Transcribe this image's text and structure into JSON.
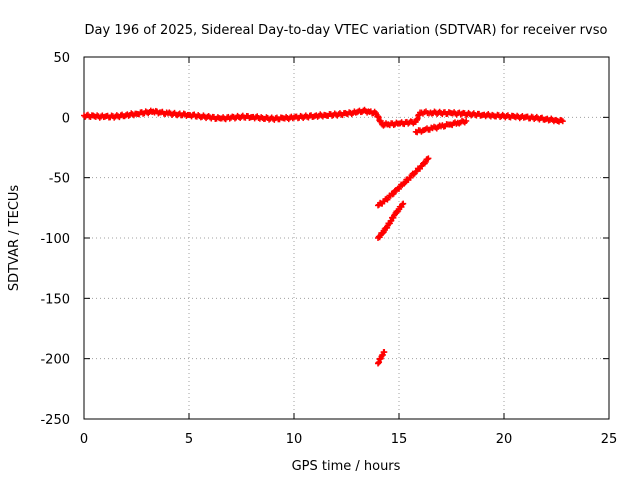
{
  "chart_data": {
    "type": "scatter",
    "title": "Day 196 of 2025, Sidereal Day-to-day VTEC variation (SDTVAR) for receiver rvso",
    "xlabel": "GPS time / hours",
    "ylabel": "SDTVAR / TECUs",
    "xlim": [
      0,
      25
    ],
    "ylim": [
      -250,
      50
    ],
    "xticks": [
      0,
      5,
      10,
      15,
      20,
      25
    ],
    "yticks": [
      -250,
      -200,
      -150,
      -100,
      -50,
      0,
      50
    ],
    "grid": true,
    "marker": "plus",
    "color": "#ff0000",
    "series": [
      {
        "values": [
          [
            0.0,
            1.5
          ],
          [
            0.5,
            0.8
          ],
          [
            1.0,
            0.5
          ],
          [
            1.5,
            0.7
          ],
          [
            2.0,
            1.8
          ],
          [
            2.5,
            3.0
          ],
          [
            3.0,
            4.2
          ],
          [
            3.3,
            4.8
          ],
          [
            3.6,
            4.0
          ],
          [
            4.0,
            3.2
          ],
          [
            4.5,
            2.5
          ],
          [
            5.0,
            2.0
          ],
          [
            5.5,
            1.0
          ],
          [
            6.0,
            0.0
          ],
          [
            6.5,
            -1.0
          ],
          [
            7.0,
            -0.3
          ],
          [
            7.5,
            0.5
          ],
          [
            8.0,
            0.3
          ],
          [
            8.5,
            -0.5
          ],
          [
            9.0,
            -1.2
          ],
          [
            9.5,
            -0.8
          ],
          [
            10.0,
            -0.2
          ],
          [
            10.5,
            0.5
          ],
          [
            11.0,
            1.2
          ],
          [
            11.5,
            1.8
          ],
          [
            12.0,
            2.3
          ],
          [
            12.5,
            3.0
          ],
          [
            13.0,
            4.2
          ],
          [
            13.3,
            5.5
          ],
          [
            13.6,
            4.5
          ],
          [
            13.9,
            3.5
          ],
          [
            14.2,
            -6.0
          ],
          [
            14.5,
            -5.8
          ],
          [
            15.0,
            -5.2
          ],
          [
            15.5,
            -4.3
          ],
          [
            15.8,
            -3.8
          ],
          [
            16.0,
            4.0
          ],
          [
            16.5,
            4.0
          ],
          [
            17.0,
            3.6
          ],
          [
            17.5,
            3.4
          ],
          [
            18.0,
            3.0
          ],
          [
            18.5,
            2.5
          ],
          [
            19.0,
            2.0
          ],
          [
            19.5,
            1.5
          ],
          [
            20.0,
            1.0
          ],
          [
            20.5,
            0.5
          ],
          [
            21.0,
            0.0
          ],
          [
            21.5,
            -0.5
          ],
          [
            22.0,
            -1.5
          ],
          [
            22.5,
            -2.5
          ],
          [
            22.8,
            -3.2
          ],
          [
            15.8,
            -12.0
          ],
          [
            16.2,
            -10.5
          ],
          [
            16.6,
            -9.0
          ],
          [
            17.0,
            -7.5
          ],
          [
            17.4,
            -6.0
          ],
          [
            17.8,
            -4.5
          ],
          [
            18.2,
            -3.0
          ],
          [
            14.0,
            -73.0
          ],
          [
            14.3,
            -69.5
          ],
          [
            14.6,
            -65.0
          ],
          [
            14.9,
            -60.0
          ],
          [
            15.2,
            -55.0
          ],
          [
            15.5,
            -50.0
          ],
          [
            15.8,
            -45.0
          ],
          [
            16.1,
            -40.0
          ],
          [
            16.4,
            -34.0
          ],
          [
            14.0,
            -100.0
          ],
          [
            14.2,
            -96.0
          ],
          [
            14.4,
            -91.5
          ],
          [
            14.6,
            -86.0
          ],
          [
            14.8,
            -80.5
          ],
          [
            15.0,
            -76.0
          ],
          [
            15.2,
            -71.5
          ],
          [
            14.0,
            -204.0
          ],
          [
            14.1,
            -200.0
          ],
          [
            14.2,
            -197.0
          ],
          [
            14.3,
            -194.5
          ]
        ]
      }
    ]
  }
}
